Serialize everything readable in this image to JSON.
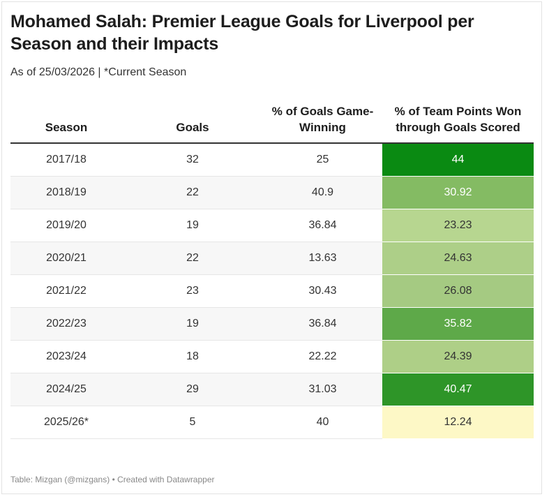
{
  "title": "Mohamed Salah: Premier League Goals for Liverpool per Season and their Impacts",
  "subtitle": "As of 25/03/2026 | *Current Season",
  "footer": "Table: Mizgan (@mizgans) • Created with Datawrapper",
  "chart_data": {
    "type": "table",
    "title": "Mohamed Salah: Premier League Goals for Liverpool per Season and their Impacts",
    "columns": [
      "Season",
      "Goals",
      "% of Goals Game-Winning",
      "% of Team Points Won through Goals Scored"
    ],
    "rows": [
      {
        "season": "2017/18",
        "goals": "32",
        "game_winning": "25",
        "points_pct": "44",
        "heat_color": "#0a8a12",
        "text_color": "#ffffff"
      },
      {
        "season": "2018/19",
        "goals": "22",
        "game_winning": "40.9",
        "points_pct": "30.92",
        "heat_color": "#84bb63",
        "text_color": "#ffffff"
      },
      {
        "season": "2019/20",
        "goals": "19",
        "game_winning": "36.84",
        "points_pct": "23.23",
        "heat_color": "#b7d690",
        "text_color": "#333333"
      },
      {
        "season": "2020/21",
        "goals": "22",
        "game_winning": "13.63",
        "points_pct": "24.63",
        "heat_color": "#adcf88",
        "text_color": "#333333"
      },
      {
        "season": "2021/22",
        "goals": "23",
        "game_winning": "30.43",
        "points_pct": "26.08",
        "heat_color": "#a5ca82",
        "text_color": "#333333"
      },
      {
        "season": "2022/23",
        "goals": "19",
        "game_winning": "36.84",
        "points_pct": "35.82",
        "heat_color": "#5ea949",
        "text_color": "#ffffff"
      },
      {
        "season": "2023/24",
        "goals": "18",
        "game_winning": "22.22",
        "points_pct": "24.39",
        "heat_color": "#aecf87",
        "text_color": "#333333"
      },
      {
        "season": "2024/25",
        "goals": "29",
        "game_winning": "31.03",
        "points_pct": "40.47",
        "heat_color": "#2e9528",
        "text_color": "#ffffff"
      },
      {
        "season": "2025/26*",
        "goals": "5",
        "game_winning": "40",
        "points_pct": "12.24",
        "heat_color": "#fdf8c6",
        "text_color": "#333333"
      }
    ]
  }
}
